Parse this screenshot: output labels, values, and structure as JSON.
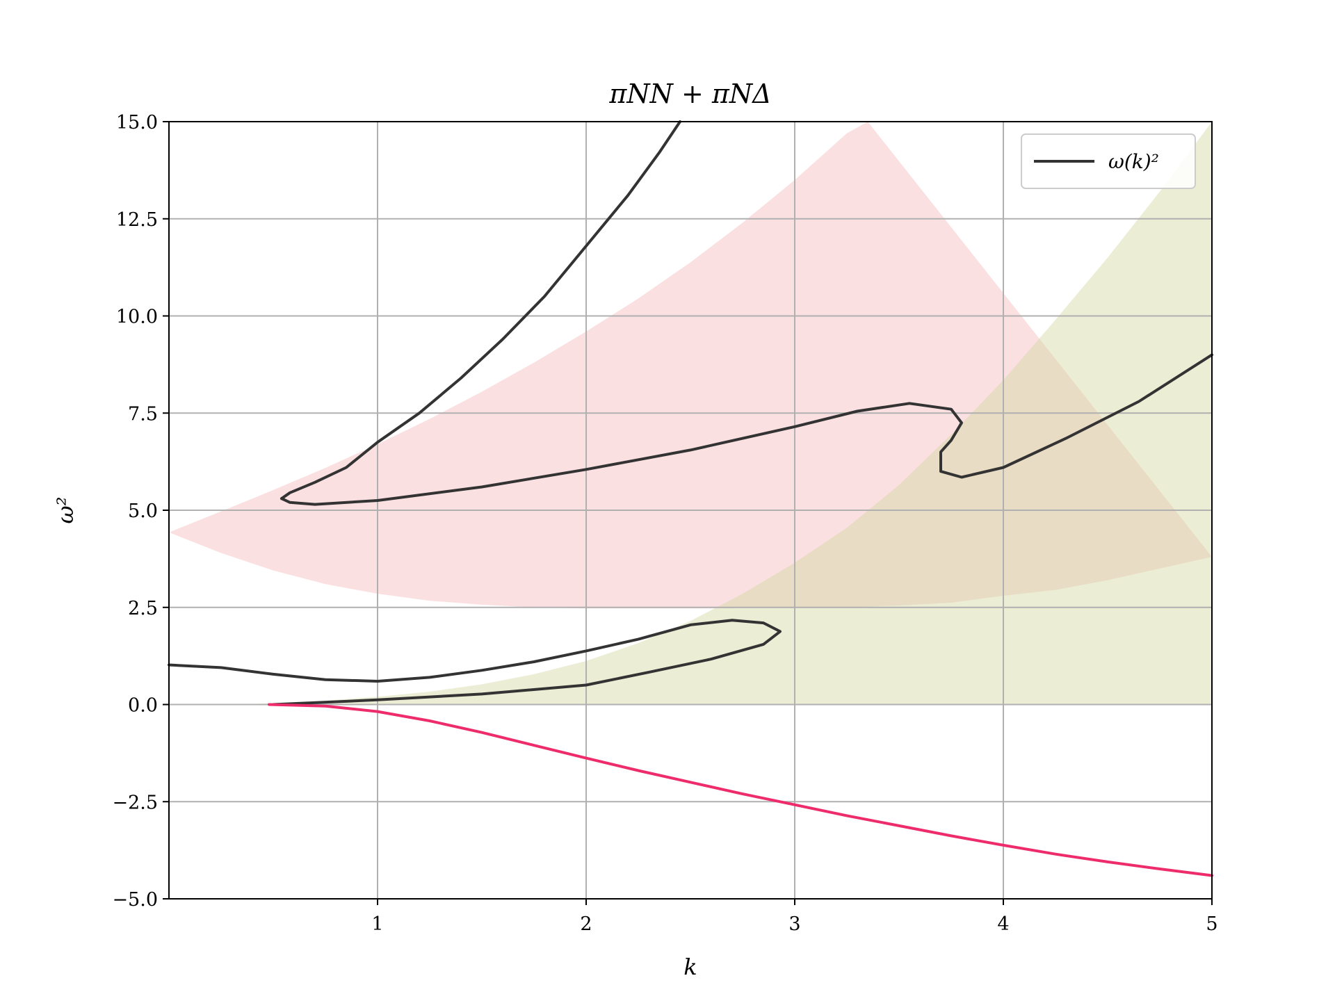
{
  "chart_data": {
    "type": "line",
    "title": "πNN + πNΔ",
    "xlabel": "k",
    "ylabel": "ω²",
    "xlim": [
      0,
      5
    ],
    "ylim": [
      -5,
      15
    ],
    "x_ticks": [
      1,
      2,
      3,
      4,
      5
    ],
    "x_tick_labels": [
      "1",
      "2",
      "3",
      "4",
      "5"
    ],
    "y_ticks": [
      -5,
      -2.5,
      0,
      2.5,
      5,
      7.5,
      10,
      12.5,
      15
    ],
    "y_tick_labels": [
      "−5.0",
      "−2.5",
      "0.0",
      "2.5",
      "5.0",
      "7.5",
      "10.0",
      "12.5",
      "15.0"
    ],
    "grid": true,
    "legend": {
      "placement": "top-right",
      "entries": [
        {
          "label": "ω(k)²",
          "color": "#333333"
        }
      ]
    },
    "bands": [
      {
        "color": "#f4a0a6",
        "opacity": 0.32,
        "upper": [
          [
            0,
            4.43
          ],
          [
            0.25,
            4.97
          ],
          [
            0.5,
            5.52
          ],
          [
            0.75,
            6.09
          ],
          [
            1,
            6.7
          ],
          [
            1.25,
            7.35
          ],
          [
            1.5,
            8.05
          ],
          [
            1.75,
            8.8
          ],
          [
            2,
            9.6
          ],
          [
            2.25,
            10.45
          ],
          [
            2.5,
            11.38
          ],
          [
            2.75,
            12.4
          ],
          [
            3,
            13.5
          ],
          [
            3.25,
            14.7
          ],
          [
            3.35,
            15.0
          ]
        ],
        "lower": [
          [
            0,
            4.43
          ],
          [
            0.25,
            3.9
          ],
          [
            0.5,
            3.45
          ],
          [
            0.75,
            3.1
          ],
          [
            1,
            2.85
          ],
          [
            1.25,
            2.67
          ],
          [
            1.5,
            2.57
          ],
          [
            1.75,
            2.5
          ],
          [
            2,
            2.47
          ],
          [
            2.25,
            2.47
          ],
          [
            2.5,
            2.47
          ],
          [
            2.75,
            2.48
          ],
          [
            3,
            2.48
          ],
          [
            3.25,
            2.5
          ],
          [
            3.5,
            2.55
          ],
          [
            3.75,
            2.62
          ],
          [
            4,
            2.8
          ],
          [
            4.25,
            2.95
          ],
          [
            4.5,
            3.2
          ],
          [
            4.75,
            3.5
          ],
          [
            5,
            3.8
          ]
        ]
      },
      {
        "color": "#d2d6a0",
        "opacity": 0.45,
        "upper": [
          [
            0.35,
            0
          ],
          [
            0.75,
            0.1
          ],
          [
            1,
            0.2
          ],
          [
            1.25,
            0.33
          ],
          [
            1.5,
            0.52
          ],
          [
            1.75,
            0.78
          ],
          [
            2,
            1.12
          ],
          [
            2.25,
            1.58
          ],
          [
            2.5,
            2.15
          ],
          [
            2.75,
            2.85
          ],
          [
            3,
            3.65
          ],
          [
            3.25,
            4.55
          ],
          [
            3.5,
            5.65
          ],
          [
            3.75,
            6.95
          ],
          [
            4,
            8.35
          ],
          [
            4.25,
            9.9
          ],
          [
            4.5,
            11.5
          ],
          [
            4.75,
            13.2
          ],
          [
            5,
            15.0
          ]
        ],
        "lower": [
          [
            0.35,
            0
          ],
          [
            5,
            0
          ]
        ]
      }
    ],
    "series": [
      {
        "name": "ω(k)²",
        "color": "#333333",
        "points": [
          [
            0.54,
            5.3
          ],
          [
            0.58,
            5.45
          ],
          [
            0.7,
            5.72
          ],
          [
            0.85,
            6.1
          ],
          [
            1,
            6.75
          ],
          [
            1.2,
            7.5
          ],
          [
            1.4,
            8.4
          ],
          [
            1.6,
            9.4
          ],
          [
            1.8,
            10.5
          ],
          [
            2,
            11.8
          ],
          [
            2.2,
            13.1
          ],
          [
            2.35,
            14.2
          ],
          [
            2.45,
            15.0
          ]
        ]
      },
      {
        "name": "ω(k)²",
        "color": "#333333",
        "points": [
          [
            0.54,
            5.3
          ],
          [
            0.58,
            5.2
          ],
          [
            0.7,
            5.15
          ],
          [
            1,
            5.25
          ],
          [
            1.5,
            5.6
          ],
          [
            2,
            6.05
          ],
          [
            2.5,
            6.55
          ],
          [
            3,
            7.15
          ],
          [
            3.3,
            7.55
          ],
          [
            3.55,
            7.75
          ],
          [
            3.75,
            7.6
          ],
          [
            3.8,
            7.25
          ],
          [
            3.75,
            6.8
          ],
          [
            3.7,
            6.5
          ],
          [
            3.7,
            6.0
          ],
          [
            3.8,
            5.85
          ],
          [
            4,
            6.1
          ],
          [
            4.3,
            6.85
          ],
          [
            4.65,
            7.8
          ],
          [
            5,
            9.0
          ]
        ]
      },
      {
        "name": "ω(k)²",
        "color": "#333333",
        "points": [
          [
            0,
            1.02
          ],
          [
            0.25,
            0.95
          ],
          [
            0.5,
            0.78
          ],
          [
            0.75,
            0.64
          ],
          [
            1,
            0.6
          ],
          [
            1.25,
            0.7
          ],
          [
            1.5,
            0.88
          ],
          [
            1.75,
            1.1
          ],
          [
            2,
            1.38
          ],
          [
            2.25,
            1.68
          ],
          [
            2.5,
            2.05
          ],
          [
            2.7,
            2.17
          ],
          [
            2.85,
            2.1
          ],
          [
            2.93,
            1.88
          ],
          [
            2.85,
            1.55
          ],
          [
            2.6,
            1.17
          ],
          [
            2.3,
            0.83
          ],
          [
            2,
            0.5
          ],
          [
            1.5,
            0.27
          ],
          [
            1,
            0.12
          ],
          [
            0.5,
            0.0
          ]
        ]
      },
      {
        "name": "",
        "color": "#ee2c6c",
        "points": [
          [
            0.48,
            0
          ],
          [
            0.75,
            -0.04
          ],
          [
            1,
            -0.18
          ],
          [
            1.25,
            -0.42
          ],
          [
            1.5,
            -0.72
          ],
          [
            1.75,
            -1.05
          ],
          [
            2,
            -1.38
          ],
          [
            2.25,
            -1.7
          ],
          [
            2.5,
            -2.0
          ],
          [
            2.75,
            -2.3
          ],
          [
            3,
            -2.58
          ],
          [
            3.25,
            -2.86
          ],
          [
            3.5,
            -3.12
          ],
          [
            3.75,
            -3.38
          ],
          [
            4,
            -3.62
          ],
          [
            4.25,
            -3.85
          ],
          [
            4.5,
            -4.05
          ],
          [
            4.75,
            -4.23
          ],
          [
            5,
            -4.4
          ]
        ]
      }
    ]
  }
}
